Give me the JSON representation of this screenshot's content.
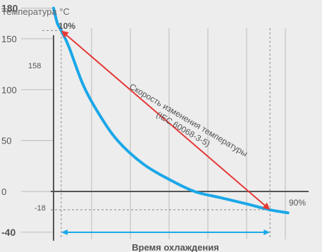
{
  "chart_data": {
    "type": "line",
    "title": "",
    "ylabel": "Температура °С",
    "xlabel": "Время охлаждения",
    "ylim": [
      -40,
      180
    ],
    "y_ticks": [
      {
        "value": 180,
        "label": "180",
        "bold": true
      },
      {
        "value": 150,
        "label": "150",
        "bold": false
      },
      {
        "value": 100,
        "label": "100",
        "bold": false
      },
      {
        "value": 50,
        "label": "50",
        "bold": false
      },
      {
        "value": 0,
        "label": "0",
        "bold": false
      },
      {
        "value": -40,
        "label": "-40",
        "bold": true
      }
    ],
    "vertical_gridlines": 6,
    "series": [
      {
        "color": "#1aa7e8",
        "points": [
          [
            0,
            180
          ],
          [
            0.3,
            165
          ],
          [
            0.6,
            158
          ],
          [
            1.2,
            142
          ],
          [
            2.3,
            105
          ],
          [
            3.5,
            77
          ],
          [
            5,
            50
          ],
          [
            7,
            27
          ],
          [
            9,
            12
          ],
          [
            11,
            0
          ],
          [
            13,
            -6
          ],
          [
            15,
            -12
          ],
          [
            16.9,
            -18
          ],
          [
            18.3,
            -21
          ]
        ]
      }
    ],
    "markers": {
      "start_label": "158",
      "start_value": 158,
      "start_x": 0.6,
      "end_label": "-18",
      "end_value": -18,
      "end_x": 16.9,
      "start_pct": "10%",
      "end_pct": "90%"
    },
    "annotation": {
      "line1": "Скорость изменения температуры",
      "line2": "(IEC 60068-3-5)",
      "color": "#e53935"
    },
    "cooling_bracket_color": "#1aa7e8"
  }
}
